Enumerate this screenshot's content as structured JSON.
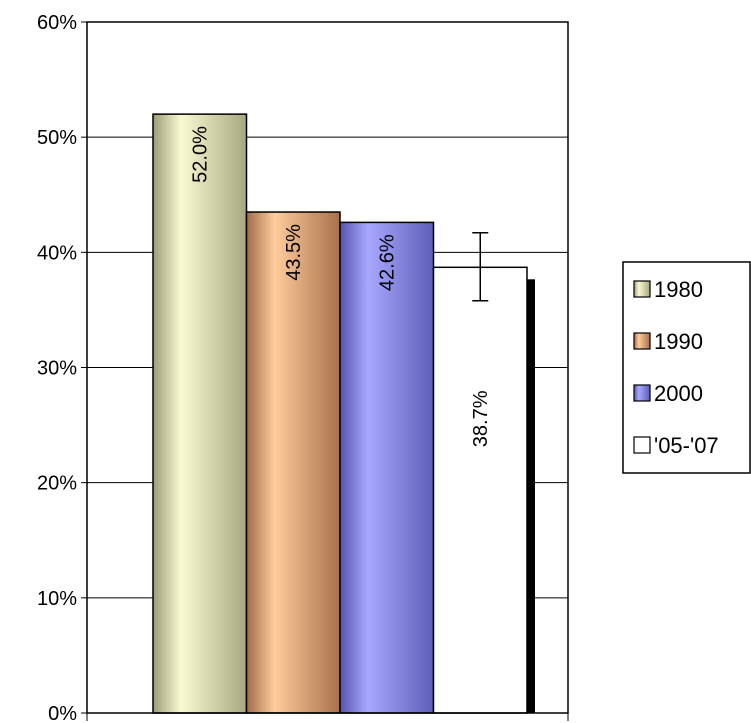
{
  "chart_data": {
    "type": "bar",
    "categories": [
      ""
    ],
    "series": [
      {
        "name": "1980",
        "values": [
          52.0
        ],
        "data_label": "52.0%",
        "color": "#d8d8a8"
      },
      {
        "name": "1990",
        "values": [
          43.5
        ],
        "data_label": "43.5%",
        "color": "#e8a878"
      },
      {
        "name": "2000",
        "values": [
          42.6
        ],
        "data_label": "42.6%",
        "color": "#8888f0"
      },
      {
        "name": "'05-'07",
        "values": [
          38.7
        ],
        "data_label": "38.7%",
        "color": "#ffffff",
        "error_bar": [
          35.8,
          41.7
        ]
      }
    ],
    "ylim": [
      0,
      60
    ],
    "yticks": [
      0,
      10,
      20,
      30,
      40,
      50,
      60
    ],
    "ytick_labels": [
      "0%",
      "10%",
      "20%",
      "30%",
      "40%",
      "50%",
      "60%"
    ],
    "xlabel": "",
    "ylabel": "",
    "grid": true,
    "legend_position": "right"
  }
}
